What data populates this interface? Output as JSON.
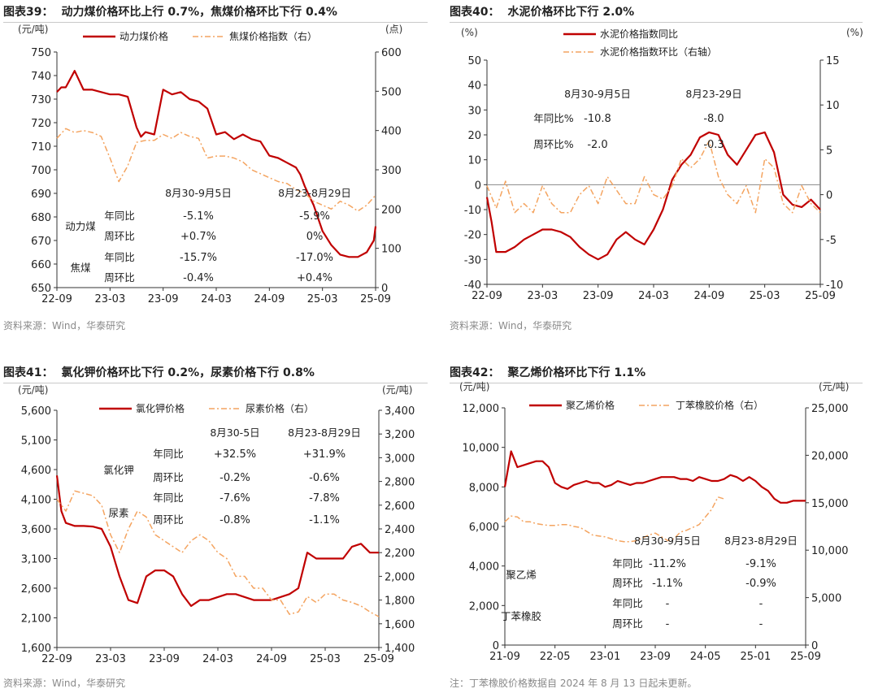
{
  "chart_data": [
    {
      "type": "line",
      "figure_label": "图表39：",
      "title": "动力煤价格环比上行 0.7%，焦煤价格环比下行 0.4%",
      "y_left_unit": "(元/吨)",
      "y_right_unit": "(点)",
      "ylim_left": [
        650,
        750
      ],
      "ylim_right": [
        0,
        600
      ],
      "y_left_ticks": [
        "750",
        "740",
        "730",
        "720",
        "710",
        "700",
        "690",
        "680",
        "670",
        "660",
        "650"
      ],
      "y_right_ticks": [
        "600",
        "500",
        "400",
        "300",
        "200",
        "100",
        "0"
      ],
      "x_ticks": [
        "22-09",
        "23-03",
        "23-09",
        "24-03",
        "24-09",
        "25-03",
        "25-09"
      ],
      "x_months": 36,
      "series": [
        {
          "name": "动力煤价格",
          "axis": "left",
          "style": "solid",
          "color": "#c00000",
          "x": [
            0,
            0.5,
            1,
            2,
            3,
            4,
            5,
            6,
            7,
            8,
            9,
            9.5,
            10,
            11,
            12,
            13,
            14,
            15,
            16,
            17,
            18,
            19,
            20,
            21,
            22,
            23,
            24,
            25,
            26,
            27,
            27.5,
            28,
            29,
            30,
            31,
            32,
            33,
            34,
            35,
            35.8,
            36
          ],
          "values": [
            733,
            735,
            735,
            742,
            734,
            734,
            733,
            732,
            732,
            731,
            718,
            714,
            716,
            715,
            734,
            732,
            733,
            730,
            729,
            726,
            715,
            716,
            713,
            715,
            713,
            712,
            706,
            705,
            703,
            701,
            698,
            693,
            685,
            674,
            668,
            664,
            663,
            663,
            665,
            670,
            676
          ]
        },
        {
          "name": "焦煤价格指数（右）",
          "axis": "right",
          "style": "dashdot",
          "color": "#f4a460",
          "x": [
            0,
            1,
            2,
            3,
            4,
            5,
            6,
            7,
            8,
            9,
            10,
            11,
            12,
            13,
            14,
            15,
            16,
            17,
            18,
            19,
            20,
            21,
            22,
            23,
            24,
            25,
            26,
            27,
            28,
            29,
            30,
            31,
            32,
            33,
            34,
            35,
            36
          ],
          "values": [
            380,
            405,
            395,
            400,
            395,
            385,
            330,
            270,
            310,
            370,
            375,
            375,
            390,
            380,
            395,
            385,
            380,
            330,
            335,
            335,
            330,
            320,
            300,
            290,
            280,
            270,
            265,
            250,
            240,
            220,
            210,
            200,
            220,
            210,
            195,
            210,
            235
          ]
        }
      ],
      "table": {
        "headers": [
          "8月30-9月5日",
          "8月23-8月29日"
        ],
        "groups": [
          {
            "name": "动力煤",
            "rows": [
              {
                "label": "年同比",
                "v1": "-5.1%",
                "v2": "-5.9%"
              },
              {
                "label": "周环比",
                "v1": "+0.7%",
                "v2": "0%"
              }
            ]
          },
          {
            "name": "焦煤",
            "rows": [
              {
                "label": "年同比",
                "v1": "-15.7%",
                "v2": "-17.0%"
              },
              {
                "label": "周环比",
                "v1": "-0.4%",
                "v2": "+0.4%"
              }
            ]
          }
        ]
      },
      "source": "资料来源：Wind，华泰研究"
    },
    {
      "type": "line",
      "figure_label": "图表40：",
      "title": "水泥价格环比下行 2.0%",
      "y_left_unit": "(%)",
      "y_right_unit": "(%)",
      "ylim_left": [
        -40,
        50
      ],
      "ylim_right": [
        -10,
        15
      ],
      "y_left_ticks": [
        "50",
        "40",
        "30",
        "20",
        "10",
        "0",
        "-10",
        "-20",
        "-30",
        "-40"
      ],
      "y_right_ticks": [
        "15",
        "10",
        "5",
        "0",
        "-5",
        "-10"
      ],
      "x_ticks": [
        "22-09",
        "23-03",
        "23-09",
        "24-03",
        "24-09",
        "25-03",
        "25-09"
      ],
      "x_months": 36,
      "series": [
        {
          "name": "水泥价格指数同比",
          "axis": "left",
          "style": "solid",
          "color": "#c00000",
          "x": [
            0,
            0.5,
            1,
            2,
            3,
            4,
            5,
            6,
            7,
            8,
            9,
            10,
            11,
            12,
            13,
            14,
            15,
            16,
            17,
            18,
            19,
            20,
            21,
            22,
            23,
            24,
            25,
            26,
            27,
            28,
            29,
            30,
            31,
            32,
            33,
            34,
            35,
            36
          ],
          "values": [
            -5,
            -15,
            -27,
            -27,
            -25,
            -22,
            -20,
            -18,
            -18,
            -19,
            -21,
            -25,
            -28,
            -30,
            -28,
            -22,
            -19,
            -22,
            -24,
            -18,
            -10,
            2,
            8,
            12,
            19,
            21,
            20,
            12,
            8,
            14,
            20,
            21,
            13,
            -4,
            -8,
            -9,
            -6,
            -10
          ]
        },
        {
          "name": "水泥价格指数环比（右轴）",
          "axis": "right",
          "style": "dashdot",
          "color": "#f4a460",
          "x": [
            0,
            1,
            2,
            3,
            4,
            5,
            6,
            7,
            8,
            9,
            10,
            11,
            12,
            13,
            14,
            15,
            16,
            17,
            18,
            19,
            20,
            21,
            22,
            23,
            24,
            25,
            26,
            27,
            28,
            29,
            30,
            31,
            32,
            33,
            34,
            35,
            36
          ],
          "values": [
            1,
            -1.5,
            1.5,
            -2,
            -1,
            -2,
            1,
            -1,
            -2,
            -2,
            0,
            1,
            -1,
            2,
            0.5,
            -1,
            -1,
            2,
            0,
            -0.5,
            1,
            4,
            3,
            4,
            6,
            2,
            0,
            -1,
            1,
            -2,
            4,
            3,
            -1,
            -2,
            1,
            -1,
            -2
          ]
        }
      ],
      "table": {
        "headers": [
          "8月30-9月5日",
          "8月23-29日"
        ],
        "rows": [
          {
            "label": "年同比%",
            "v1": "-10.8",
            "v2": "-8.0"
          },
          {
            "label": "周环比%",
            "v1": "-2.0",
            "v2": "-0.3"
          }
        ]
      },
      "source": "资料来源：Wind，华泰研究"
    },
    {
      "type": "line",
      "figure_label": "图表41：",
      "title": "氯化钾价格环比下行 0.2%，尿素价格下行 0.8%",
      "y_left_unit": "(元/吨)",
      "y_right_unit": "(元/吨)",
      "ylim_left": [
        1600,
        5600
      ],
      "ylim_right": [
        1400,
        3400
      ],
      "y_left_ticks": [
        "5,600",
        "5,100",
        "4,600",
        "4,100",
        "3,600",
        "3,100",
        "2,600",
        "2,100",
        "1,600"
      ],
      "y_right_ticks": [
        "3,400",
        "3,200",
        "3,000",
        "2,800",
        "2,600",
        "2,400",
        "2,200",
        "2,000",
        "1,800",
        "1,600",
        "1,400"
      ],
      "x_ticks": [
        "22-09",
        "23-03",
        "23-09",
        "24-03",
        "24-09",
        "25-03",
        "25-09"
      ],
      "x_months": 36,
      "series": [
        {
          "name": "氯化钾价格",
          "axis": "left",
          "style": "solid",
          "color": "#c00000",
          "x": [
            0,
            0.5,
            1,
            2,
            3,
            4,
            5,
            6,
            7,
            8,
            9,
            10,
            11,
            12,
            13,
            14,
            15,
            16,
            17,
            18,
            19,
            20,
            21,
            22,
            23,
            24,
            25,
            26,
            27,
            28,
            29,
            30,
            31,
            32,
            33,
            34,
            35,
            36
          ],
          "values": [
            4500,
            3900,
            3700,
            3650,
            3650,
            3640,
            3600,
            3300,
            2800,
            2400,
            2350,
            2800,
            2900,
            2900,
            2800,
            2500,
            2300,
            2400,
            2400,
            2450,
            2500,
            2500,
            2450,
            2400,
            2400,
            2400,
            2450,
            2500,
            2600,
            3200,
            3100,
            3100,
            3100,
            3100,
            3300,
            3350,
            3200,
            3200
          ]
        },
        {
          "name": "尿素价格（右）",
          "axis": "right",
          "style": "dashdot",
          "color": "#f4a460",
          "x": [
            0,
            1,
            2,
            3,
            4,
            5,
            6,
            7,
            8,
            9,
            10,
            11,
            12,
            13,
            14,
            15,
            16,
            17,
            18,
            19,
            20,
            21,
            22,
            23,
            24,
            25,
            26,
            27,
            28,
            29,
            30,
            31,
            32,
            33,
            34,
            35,
            36
          ],
          "values": [
            2650,
            2550,
            2720,
            2700,
            2680,
            2600,
            2350,
            2200,
            2400,
            2550,
            2500,
            2350,
            2300,
            2250,
            2200,
            2300,
            2350,
            2300,
            2200,
            2150,
            2000,
            2000,
            1900,
            1900,
            1800,
            1800,
            1680,
            1700,
            1830,
            1780,
            1850,
            1850,
            1800,
            1780,
            1750,
            1700,
            1660
          ]
        }
      ],
      "table": {
        "headers": [
          "8月30-5日",
          "8月23-8月29日"
        ],
        "groups": [
          {
            "name": "氯化钾",
            "rows": [
              {
                "label": "年同比",
                "v1": "+32.5%",
                "v2": "+31.9%"
              },
              {
                "label": "周环比",
                "v1": "-0.2%",
                "v2": "-0.6%"
              }
            ]
          },
          {
            "name": "尿素",
            "rows": [
              {
                "label": "年同比",
                "v1": "-7.6%",
                "v2": "-7.8%"
              },
              {
                "label": "周环比",
                "v1": "-0.8%",
                "v2": "-1.1%"
              }
            ]
          }
        ]
      },
      "source": "资料来源：Wind，华泰研究"
    },
    {
      "type": "line",
      "figure_label": "图表42：",
      "title": "聚乙烯价格环比下行 1.1%",
      "y_left_unit": "(元/吨)",
      "y_right_unit": "(元/吨)",
      "ylim_left": [
        0,
        12000
      ],
      "ylim_right": [
        0,
        25000
      ],
      "y_left_ticks": [
        "12,000",
        "10,000",
        "8,000",
        "6,000",
        "4,000",
        "2,000",
        "0"
      ],
      "y_right_ticks": [
        "25,000",
        "20,000",
        "15,000",
        "10,000",
        "5,000",
        "0"
      ],
      "x_ticks": [
        "21-09",
        "22-05",
        "23-01",
        "23-09",
        "24-05",
        "25-01",
        "25-09"
      ],
      "x_months": 48,
      "series": [
        {
          "name": "聚乙烯价格",
          "axis": "left",
          "style": "solid",
          "color": "#c00000",
          "x": [
            0,
            1,
            2,
            3,
            4,
            5,
            6,
            7,
            8,
            9,
            10,
            11,
            12,
            13,
            14,
            15,
            16,
            17,
            18,
            19,
            20,
            21,
            22,
            23,
            24,
            25,
            26,
            27,
            28,
            29,
            30,
            31,
            32,
            33,
            34,
            35,
            36,
            37,
            38,
            39,
            40,
            41,
            42,
            43,
            44,
            45,
            46,
            47,
            48
          ],
          "values": [
            8000,
            9800,
            9000,
            9100,
            9200,
            9300,
            9300,
            9000,
            8200,
            8000,
            7900,
            8100,
            8200,
            8300,
            8200,
            8200,
            8000,
            8100,
            8300,
            8200,
            8100,
            8200,
            8200,
            8300,
            8400,
            8500,
            8500,
            8500,
            8400,
            8400,
            8300,
            8500,
            8400,
            8300,
            8300,
            8400,
            8600,
            8500,
            8300,
            8500,
            8300,
            8000,
            7800,
            7400,
            7200,
            7200,
            7300,
            7300,
            7300
          ]
        },
        {
          "name": "丁苯橡胶价格（右）",
          "axis": "right",
          "style": "dashdot",
          "color": "#f4a460",
          "x": [
            0,
            1,
            2,
            3,
            4,
            5,
            6,
            7,
            8,
            9,
            10,
            11,
            12,
            13,
            14,
            15,
            16,
            17,
            18,
            19,
            20,
            21,
            22,
            23,
            24,
            25,
            26,
            27,
            28,
            29,
            30,
            31,
            32,
            33,
            34,
            35
          ],
          "values": [
            13000,
            13600,
            13500,
            13000,
            13000,
            12800,
            12700,
            12600,
            12600,
            12700,
            12700,
            12500,
            12400,
            12000,
            11600,
            11500,
            11400,
            11200,
            11000,
            10900,
            10900,
            11000,
            11300,
            11600,
            11800,
            11400,
            11000,
            11200,
            11900,
            12100,
            12400,
            12700,
            13500,
            14300,
            15600,
            15400
          ]
        }
      ],
      "table": {
        "headers": [
          "8月30-9月5日",
          "8月23-8月29日"
        ],
        "groups": [
          {
            "name": "聚乙烯",
            "rows": [
              {
                "label": "年同比",
                "v1": "-11.2%",
                "v2": "-9.1%"
              },
              {
                "label": "周环比",
                "v1": "-1.1%",
                "v2": "-0.9%"
              }
            ]
          },
          {
            "name": "丁苯橡胶",
            "rows": [
              {
                "label": "年同比",
                "v1": "-",
                "v2": "-"
              },
              {
                "label": "周环比",
                "v1": "-",
                "v2": "-"
              }
            ]
          }
        ]
      },
      "source": "注：丁苯橡胶价格数据自 2024 年 8 月 13 日起未更新。"
    }
  ]
}
